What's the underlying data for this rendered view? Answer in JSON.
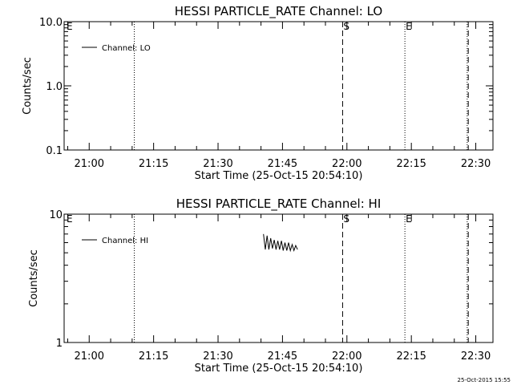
{
  "chart_data": [
    {
      "type": "line",
      "title": "HESSI PARTICLE_RATE Channel: LO",
      "xlabel": "Start Time (25-Oct-15 20:54:10)",
      "ylabel": "Counts/sec",
      "y_scale": "log",
      "ylim": [
        0.1,
        10.0
      ],
      "y_ticks": [
        "0.1",
        "1.0",
        "10.0"
      ],
      "x_range": [
        "20:54:10",
        "22:34:00"
      ],
      "x_ticks": [
        "21:00",
        "21:15",
        "21:30",
        "21:45",
        "22:00",
        "22:15",
        "22:30"
      ],
      "legend": "top-left",
      "series": [
        {
          "name": "Channel: LO",
          "x": [],
          "values": []
        }
      ],
      "events": [
        {
          "time": "20:54:10",
          "label": "E",
          "style": "none"
        },
        {
          "time": "21:10:30",
          "label": "",
          "style": "dotted"
        },
        {
          "time": "21:59:00",
          "label": "S",
          "style": "dashed"
        },
        {
          "time": "22:13:30",
          "label": "E",
          "style": "dotted"
        },
        {
          "time": "22:28:00",
          "label": "",
          "style": "dotted"
        },
        {
          "time": "22:28:15",
          "label": "",
          "style": "dashed"
        }
      ]
    },
    {
      "type": "line",
      "title": "HESSI PARTICLE_RATE Channel: HI",
      "xlabel": "Start Time (25-Oct-15 20:54:10)",
      "ylabel": "Counts/sec",
      "y_scale": "log",
      "ylim": [
        1,
        10
      ],
      "y_ticks": [
        "1",
        "10"
      ],
      "x_range": [
        "20:54:10",
        "22:34:00"
      ],
      "x_ticks": [
        "21:00",
        "21:15",
        "21:30",
        "21:45",
        "22:00",
        "22:15",
        "22:30"
      ],
      "legend": "top-left",
      "series": [
        {
          "name": "Channel: HI",
          "x": [
            "21:40:35",
            "21:41:00",
            "21:41:25",
            "21:41:50",
            "21:42:15",
            "21:42:40",
            "21:43:05",
            "21:43:30",
            "21:43:55",
            "21:44:20",
            "21:44:45",
            "21:45:10",
            "21:45:35",
            "21:46:00",
            "21:46:25",
            "21:46:50",
            "21:47:15",
            "21:47:40",
            "21:48:05",
            "21:48:30"
          ],
          "values": [
            7.0,
            5.3,
            6.8,
            5.3,
            6.5,
            5.4,
            6.3,
            5.3,
            6.2,
            5.3,
            6.2,
            5.2,
            6.0,
            5.2,
            6.0,
            5.2,
            5.8,
            5.2,
            5.7,
            5.3
          ]
        }
      ],
      "events": [
        {
          "time": "20:54:10",
          "label": "E",
          "style": "none"
        },
        {
          "time": "21:10:30",
          "label": "",
          "style": "dotted"
        },
        {
          "time": "21:59:00",
          "label": "S",
          "style": "dashed"
        },
        {
          "time": "22:13:30",
          "label": "E",
          "style": "dotted"
        },
        {
          "time": "22:28:00",
          "label": "",
          "style": "dotted"
        },
        {
          "time": "22:28:15",
          "label": "",
          "style": "dashed"
        }
      ]
    }
  ],
  "footer": {
    "timestamp": "25-Oct-2015 15:55"
  }
}
